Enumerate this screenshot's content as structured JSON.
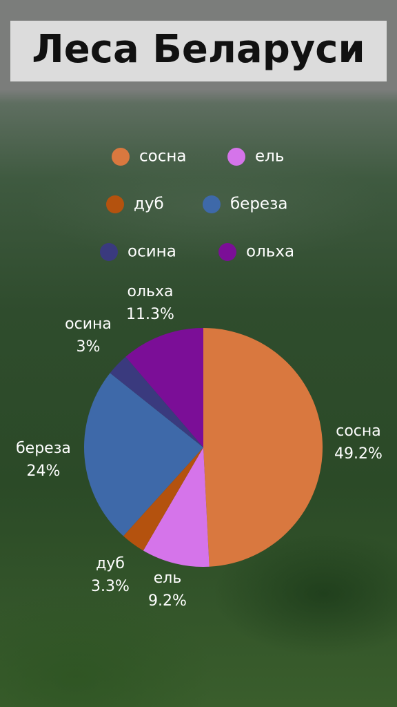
{
  "chart_data": {
    "type": "pie",
    "title": "Леса Беларуси",
    "categories": [
      "сосна",
      "ель",
      "дуб",
      "береза",
      "осина",
      "ольха"
    ],
    "values": [
      49.2,
      9.2,
      3.3,
      24,
      3,
      11.3
    ],
    "value_labels": [
      "49.2%",
      "9.2%",
      "3.3%",
      "24%",
      "3%",
      "11.3%"
    ],
    "colors": [
      "#d9783f",
      "#d574ea",
      "#b4520e",
      "#3e69a9",
      "#3a3a7e",
      "#7b0e97"
    ]
  }
}
